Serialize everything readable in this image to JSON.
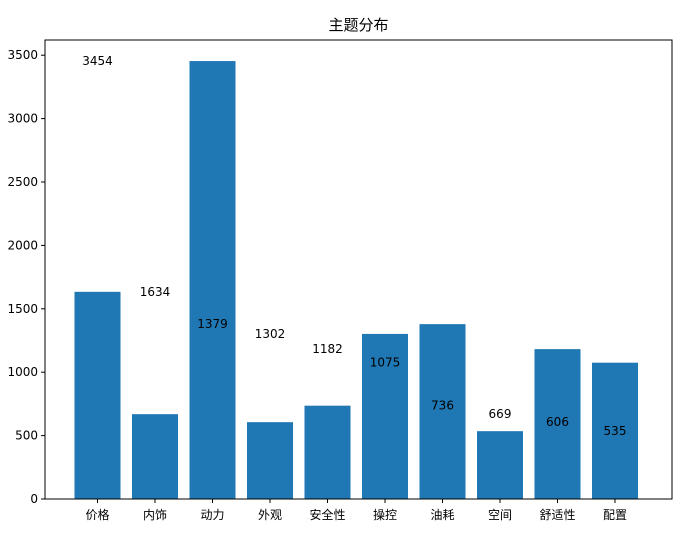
{
  "chart_data": {
    "type": "bar",
    "title": "主题分布",
    "xlabel": "",
    "ylabel": "",
    "categories": [
      "价格",
      "内饰",
      "动力",
      "外观",
      "安全性",
      "操控",
      "油耗",
      "空间",
      "舒适性",
      "配置"
    ],
    "values": [
      1634,
      669,
      3454,
      606,
      736,
      1302,
      1379,
      535,
      1182,
      1075
    ],
    "data_labels": [
      3454,
      1634,
      1379,
      1302,
      1182,
      1075,
      736,
      669,
      606,
      535
    ],
    "ylim": [
      0,
      3620
    ],
    "yticks": [
      0,
      500,
      1000,
      1500,
      2000,
      2500,
      3000,
      3500
    ],
    "bar_color": "#1f77b4",
    "grid": false,
    "legend": "none"
  }
}
